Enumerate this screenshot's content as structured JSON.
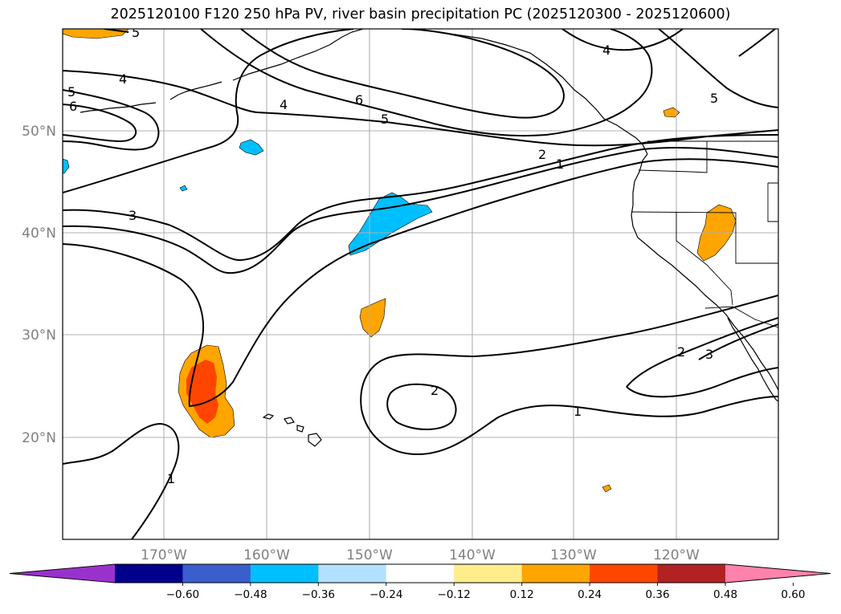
{
  "title": "2025120100 F120 250 hPa PV, river basin precipitation PC (2025120300 - 2025120600)",
  "lon_labels": [
    "170°W",
    "160°W",
    "150°W",
    "140°W",
    "130°W",
    "120°W"
  ],
  "lat_labels": [
    "50°N",
    "40°N",
    "30°N",
    "20°N"
  ],
  "colorbar": {
    "colors": [
      "#9932cc",
      "#00008b",
      "#3a5fcd",
      "#00bfff",
      "#b0e2ff",
      "#ffffff",
      "#ffec8b",
      "#ffa500",
      "#ff4500",
      "#b22222",
      "#ff82ab"
    ],
    "tick_labels": [
      "−0.60",
      "−0.48",
      "−0.36",
      "−0.24",
      "−0.12",
      "0.12",
      "0.24",
      "0.36",
      "0.48",
      "0.60"
    ]
  },
  "contour_labels": [
    "5",
    "4",
    "5",
    "6",
    "4",
    "6",
    "5",
    "5",
    "4",
    "3",
    "2",
    "1",
    "2",
    "1",
    "2",
    "3",
    "1"
  ]
}
